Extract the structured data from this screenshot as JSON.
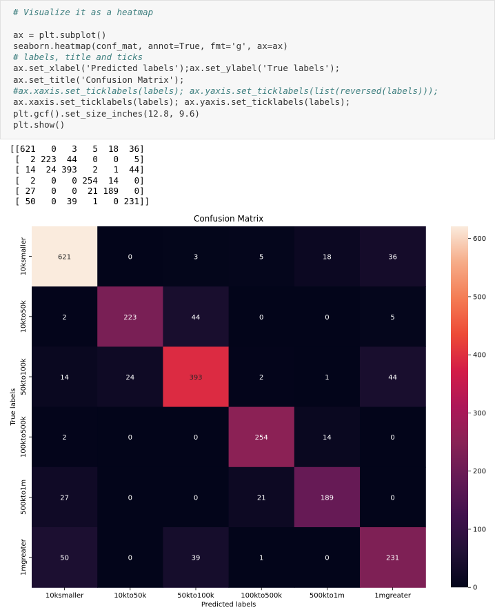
{
  "code_lines": [
    "# Visualize it as a heatmap",
    "",
    "ax = plt.subplot()",
    "seaborn.heatmap(conf_mat, annot=True, fmt='g', ax=ax)",
    "# labels, title and ticks",
    "ax.set_xlabel('Predicted labels');ax.set_ylabel('True labels');",
    "ax.set_title('Confusion Matrix');",
    "#ax.xaxis.set_ticklabels(labels); ax.yaxis.set_ticklabels(list(reversed(labels)));",
    "ax.xaxis.set_ticklabels(labels); ax.yaxis.set_ticklabels(labels);",
    "plt.gcf().set_size_inches(12.8, 9.6)",
    "plt.show()"
  ],
  "output_text": "[[621   0   3   5  18  36]\n [  2 223  44   0   0   5]\n [ 14  24 393   2   1  44]\n [  2   0   0 254  14   0]\n [ 27   0   0  21 189   0]\n [ 50   0  39   1   0 231]]",
  "chart_data": {
    "type": "heatmap",
    "title": "Confusion Matrix",
    "xlabel": "Predicted labels",
    "ylabel": "True labels",
    "x_categories": [
      "10ksmaller",
      "10kto50k",
      "50kto100k",
      "100kto500k",
      "500kto1m",
      "1mgreater"
    ],
    "y_categories": [
      "10ksmaller",
      "10kto50k",
      "50kto100k",
      "100kto500k",
      "500kto1m",
      "1mgreater"
    ],
    "values": [
      [
        621,
        0,
        3,
        5,
        18,
        36
      ],
      [
        2,
        223,
        44,
        0,
        0,
        5
      ],
      [
        14,
        24,
        393,
        2,
        1,
        44
      ],
      [
        2,
        0,
        0,
        254,
        14,
        0
      ],
      [
        27,
        0,
        0,
        21,
        189,
        0
      ],
      [
        50,
        0,
        39,
        1,
        0,
        231
      ]
    ],
    "vmin": 0,
    "vmax": 621,
    "colorbar_ticks": [
      0,
      100,
      200,
      300,
      400,
      500,
      600
    ],
    "colormap": "rocket"
  }
}
